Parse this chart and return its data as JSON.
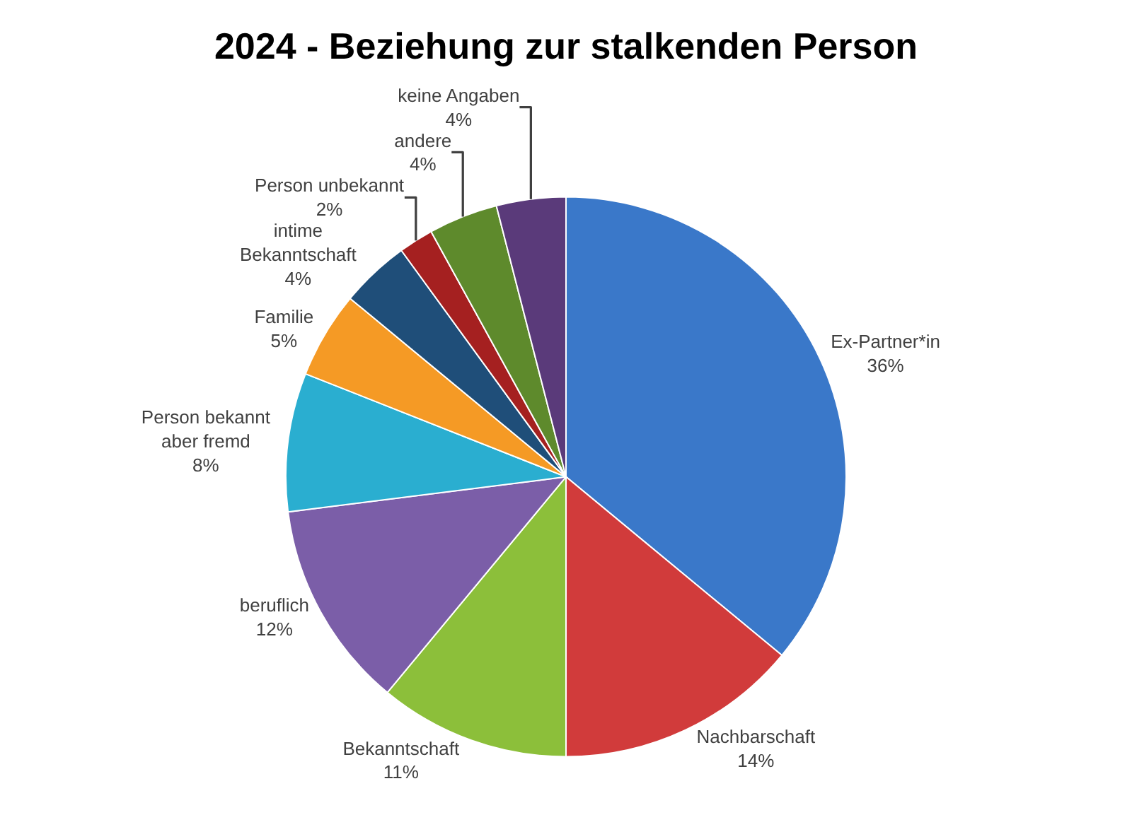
{
  "chart_data": {
    "type": "pie",
    "title": "2024 - Beziehung zur stalkenden Person",
    "categories": [
      "Ex-Partner*in",
      "Nachbarschaft",
      "Bekanntschaft",
      "beruflich",
      "Person bekannt aber fremd",
      "Familie",
      "intime Bekanntschaft",
      "Person unbekannt",
      "andere",
      "keine Angaben"
    ],
    "values": [
      36,
      14,
      11,
      12,
      8,
      5,
      4,
      2,
      4,
      4
    ],
    "value_labels": [
      "36%",
      "14%",
      "11%",
      "12%",
      "8%",
      "5%",
      "4%",
      "2%",
      "4%",
      "4%"
    ],
    "colors": [
      "#3a78c9",
      "#d13b3b",
      "#8cbf3a",
      "#7b5ea8",
      "#2aaed0",
      "#f59a25",
      "#1f4e79",
      "#a52020",
      "#5e8a2c",
      "#5a3a7a"
    ],
    "legend": false
  }
}
